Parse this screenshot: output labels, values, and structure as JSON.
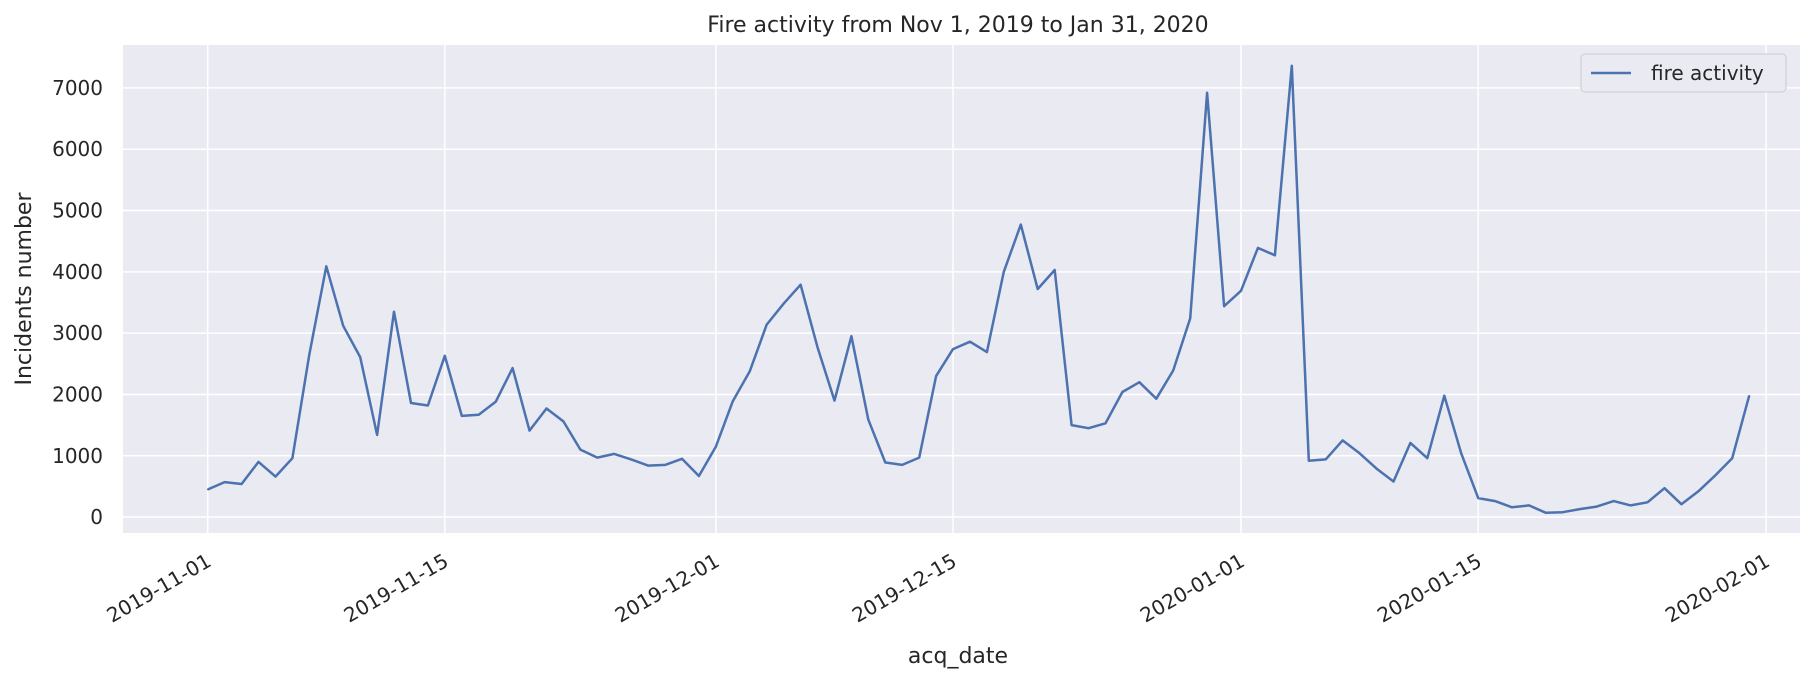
{
  "chart_data": {
    "type": "line",
    "title": "Fire activity from Nov 1, 2019 to Jan 31, 2020",
    "xlabel": "acq_date",
    "ylabel": "Incidents number",
    "xlim": [
      "2019-10-27",
      "2020-02-03"
    ],
    "ylim": [
      -260,
      7700
    ],
    "x_ticks": [
      "2019-11-01",
      "2019-11-15",
      "2019-12-01",
      "2019-12-15",
      "2020-01-01",
      "2020-01-15",
      "2020-02-01"
    ],
    "y_ticks": [
      0,
      1000,
      2000,
      3000,
      4000,
      5000,
      6000,
      7000
    ],
    "grid": true,
    "background": "#EAEAF2",
    "legend_position": "top-right",
    "series": [
      {
        "name": "fire activity",
        "color": "#4C72B0",
        "x": [
          "2019-11-01",
          "2019-11-02",
          "2019-11-03",
          "2019-11-04",
          "2019-11-05",
          "2019-11-06",
          "2019-11-07",
          "2019-11-08",
          "2019-11-09",
          "2019-11-10",
          "2019-11-11",
          "2019-11-12",
          "2019-11-13",
          "2019-11-14",
          "2019-11-15",
          "2019-11-16",
          "2019-11-17",
          "2019-11-18",
          "2019-11-19",
          "2019-11-20",
          "2019-11-21",
          "2019-11-22",
          "2019-11-23",
          "2019-11-24",
          "2019-11-25",
          "2019-11-26",
          "2019-11-27",
          "2019-11-28",
          "2019-11-29",
          "2019-11-30",
          "2019-12-01",
          "2019-12-02",
          "2019-12-03",
          "2019-12-04",
          "2019-12-05",
          "2019-12-06",
          "2019-12-07",
          "2019-12-08",
          "2019-12-09",
          "2019-12-10",
          "2019-12-11",
          "2019-12-12",
          "2019-12-13",
          "2019-12-14",
          "2019-12-15",
          "2019-12-16",
          "2019-12-17",
          "2019-12-18",
          "2019-12-19",
          "2019-12-20",
          "2019-12-21",
          "2019-12-22",
          "2019-12-23",
          "2019-12-24",
          "2019-12-25",
          "2019-12-26",
          "2019-12-27",
          "2019-12-28",
          "2019-12-29",
          "2019-12-30",
          "2019-12-31",
          "2020-01-01",
          "2020-01-02",
          "2020-01-03",
          "2020-01-04",
          "2020-01-05",
          "2020-01-06",
          "2020-01-07",
          "2020-01-08",
          "2020-01-09",
          "2020-01-10",
          "2020-01-11",
          "2020-01-12",
          "2020-01-13",
          "2020-01-14",
          "2020-01-15",
          "2020-01-16",
          "2020-01-17",
          "2020-01-18",
          "2020-01-19",
          "2020-01-20",
          "2020-01-21",
          "2020-01-22",
          "2020-01-23",
          "2020-01-24",
          "2020-01-25",
          "2020-01-26",
          "2020-01-27",
          "2020-01-28",
          "2020-01-29",
          "2020-01-30",
          "2020-01-31"
        ],
        "values": [
          450,
          570,
          540,
          900,
          660,
          960,
          2650,
          4090,
          3120,
          2610,
          1340,
          3350,
          1860,
          1820,
          2630,
          1650,
          1670,
          1880,
          2430,
          1410,
          1770,
          1560,
          1100,
          970,
          1030,
          940,
          840,
          850,
          950,
          670,
          1150,
          1890,
          2380,
          3140,
          3480,
          3790,
          2770,
          1900,
          2950,
          1590,
          890,
          850,
          970,
          2300,
          2740,
          2860,
          2690,
          4000,
          4770,
          3720,
          4030,
          1500,
          1450,
          1530,
          2040,
          2200,
          1930,
          2390,
          3240,
          6920,
          3440,
          3690,
          4390,
          4270,
          7360,
          920,
          940,
          1250,
          1040,
          790,
          580,
          1210,
          960,
          1980,
          1040,
          310,
          260,
          160,
          190,
          70,
          80,
          130,
          170,
          260,
          190,
          240,
          470,
          210,
          420,
          680,
          960,
          1980
        ]
      }
    ]
  }
}
